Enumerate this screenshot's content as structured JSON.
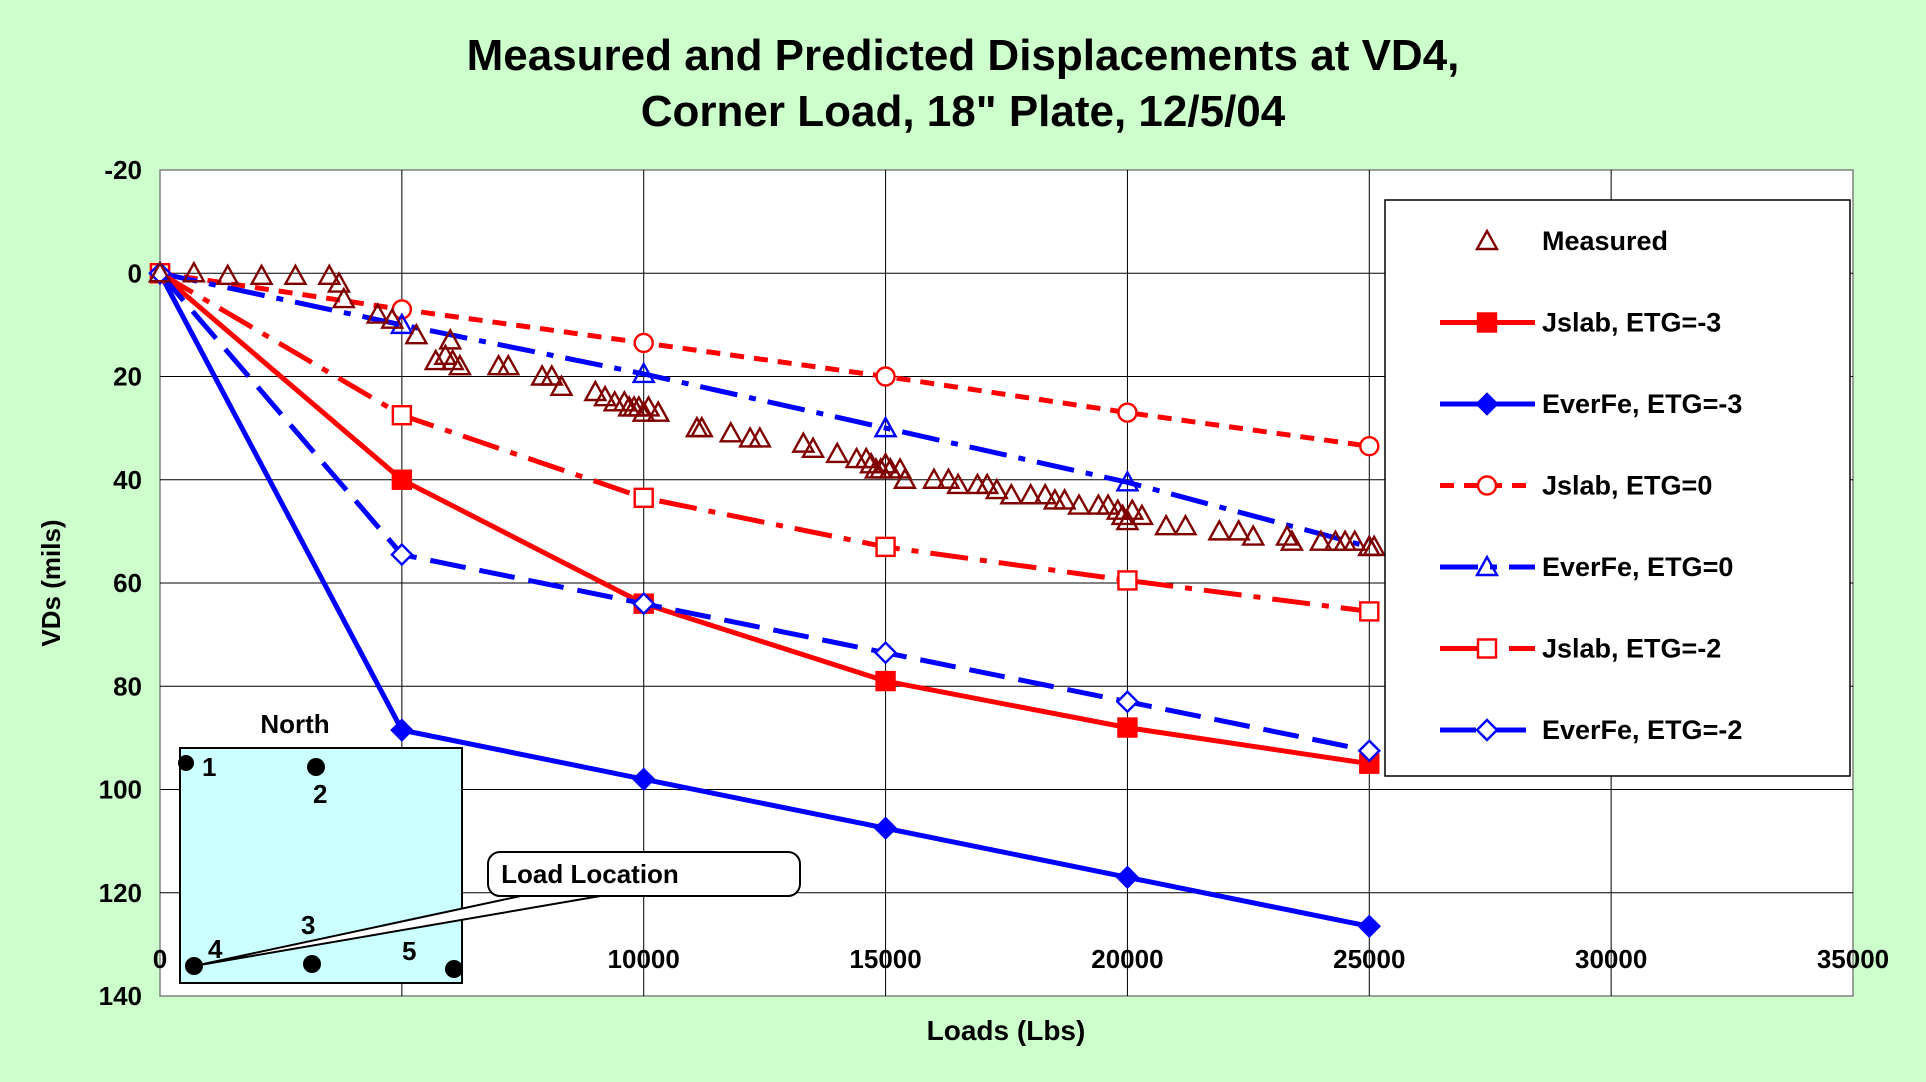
{
  "chart_data": {
    "type": "line",
    "title": [
      "Measured and Predicted Displacements at VD4,",
      "Corner Load, 18\" Plate, 12/5/04"
    ],
    "xlabel": "Loads (Lbs)",
    "ylabel": "VDs (mils)",
    "xlim": [
      0,
      35000
    ],
    "ylim": [
      -20,
      140
    ],
    "y_reversed": true,
    "grid": true,
    "legend_position": "right",
    "x_ticks": [
      "0",
      "5000",
      "10000",
      "15000",
      "20000",
      "25000",
      "30000",
      "35000"
    ],
    "y_ticks": [
      "-20",
      "0",
      "20",
      "40",
      "60",
      "80",
      "100",
      "120",
      "140"
    ],
    "series": [
      {
        "name": "Measured",
        "color": "#800000",
        "marker": "triangle-open",
        "line": "none",
        "points": [
          [
            0,
            0
          ],
          [
            700,
            0
          ],
          [
            1400,
            0.5
          ],
          [
            2100,
            0.5
          ],
          [
            2800,
            0.5
          ],
          [
            3500,
            0.5
          ],
          [
            3700,
            2
          ],
          [
            3800,
            5
          ],
          [
            4500,
            8
          ],
          [
            4800,
            9
          ],
          [
            5300,
            12
          ],
          [
            5700,
            17
          ],
          [
            5900,
            16
          ],
          [
            6000,
            13
          ],
          [
            6050,
            17
          ],
          [
            6200,
            18
          ],
          [
            7000,
            18
          ],
          [
            7200,
            18
          ],
          [
            7900,
            20
          ],
          [
            8100,
            20
          ],
          [
            8300,
            22
          ],
          [
            9000,
            23
          ],
          [
            9200,
            24
          ],
          [
            9400,
            25
          ],
          [
            9600,
            25
          ],
          [
            9700,
            26
          ],
          [
            9800,
            26
          ],
          [
            9900,
            26
          ],
          [
            10000,
            27
          ],
          [
            10100,
            26
          ],
          [
            10300,
            27
          ],
          [
            11100,
            30
          ],
          [
            11200,
            30
          ],
          [
            11800,
            31
          ],
          [
            12200,
            32
          ],
          [
            12400,
            32
          ],
          [
            13300,
            33
          ],
          [
            13500,
            34
          ],
          [
            14000,
            35
          ],
          [
            14400,
            36
          ],
          [
            14600,
            36
          ],
          [
            14700,
            37
          ],
          [
            14800,
            38
          ],
          [
            14900,
            38
          ],
          [
            15000,
            37
          ],
          [
            15100,
            38
          ],
          [
            15300,
            38
          ],
          [
            15400,
            40
          ],
          [
            16000,
            40
          ],
          [
            16300,
            40
          ],
          [
            16500,
            41
          ],
          [
            16900,
            41
          ],
          [
            17100,
            41
          ],
          [
            17300,
            42
          ],
          [
            17600,
            43
          ],
          [
            18000,
            43
          ],
          [
            18300,
            43
          ],
          [
            18500,
            44
          ],
          [
            18700,
            44
          ],
          [
            19000,
            45
          ],
          [
            19400,
            45
          ],
          [
            19600,
            45
          ],
          [
            19800,
            46
          ],
          [
            19900,
            47
          ],
          [
            20000,
            48
          ],
          [
            20100,
            46
          ],
          [
            20300,
            47
          ],
          [
            20800,
            49
          ],
          [
            21200,
            49
          ],
          [
            21900,
            50
          ],
          [
            22300,
            50
          ],
          [
            22600,
            51
          ],
          [
            23300,
            51
          ],
          [
            23400,
            52
          ],
          [
            24000,
            52
          ],
          [
            24300,
            52
          ],
          [
            24500,
            52
          ],
          [
            24700,
            52
          ],
          [
            25000,
            53
          ],
          [
            25100,
            53
          ]
        ]
      },
      {
        "name": "Jslab, ETG=-3",
        "color": "#ff0000",
        "marker": "square-filled",
        "line": "solid",
        "points": [
          [
            0,
            0
          ],
          [
            5000,
            40
          ],
          [
            10000,
            64
          ],
          [
            15000,
            79
          ],
          [
            20000,
            88
          ],
          [
            25000,
            95
          ]
        ]
      },
      {
        "name": "EverFe, ETG=-3",
        "color": "#0000ff",
        "marker": "diamond-filled",
        "line": "solid",
        "points": [
          [
            0,
            0
          ],
          [
            5000,
            88.5
          ],
          [
            10000,
            98
          ],
          [
            15000,
            107.5
          ],
          [
            20000,
            117
          ],
          [
            25000,
            126.5
          ]
        ]
      },
      {
        "name": "Jslab, ETG=0",
        "color": "#ff0000",
        "marker": "circle-open",
        "line": "dash-short",
        "points": [
          [
            0,
            0
          ],
          [
            5000,
            7
          ],
          [
            10000,
            13.5
          ],
          [
            15000,
            20
          ],
          [
            20000,
            27
          ],
          [
            25000,
            33.5
          ]
        ]
      },
      {
        "name": "EverFe, ETG=0",
        "color": "#0000ff",
        "marker": "triangle-open",
        "line": "dash-dot",
        "points": [
          [
            0,
            0
          ],
          [
            5000,
            10
          ],
          [
            10000,
            19.5
          ],
          [
            15000,
            30
          ],
          [
            20000,
            40.5
          ],
          [
            25000,
            53
          ]
        ]
      },
      {
        "name": "Jslab, ETG=-2",
        "color": "#ff0000",
        "marker": "square-open",
        "line": "dash-dot",
        "points": [
          [
            0,
            0
          ],
          [
            5000,
            27.5
          ],
          [
            10000,
            43.5
          ],
          [
            15000,
            53
          ],
          [
            20000,
            59.5
          ],
          [
            25000,
            65.5
          ]
        ]
      },
      {
        "name": "EverFe, ETG=-2",
        "color": "#0000ff",
        "marker": "diamond-open",
        "line": "dash-long",
        "points": [
          [
            0,
            0
          ],
          [
            5000,
            54.5
          ],
          [
            10000,
            64
          ],
          [
            15000,
            73.5
          ],
          [
            20000,
            83
          ],
          [
            25000,
            92.5
          ]
        ]
      }
    ],
    "inset": {
      "north_label": "North",
      "sensor_labels": [
        "1",
        "2",
        "3",
        "4",
        "5"
      ],
      "callout": "Load Location"
    }
  }
}
